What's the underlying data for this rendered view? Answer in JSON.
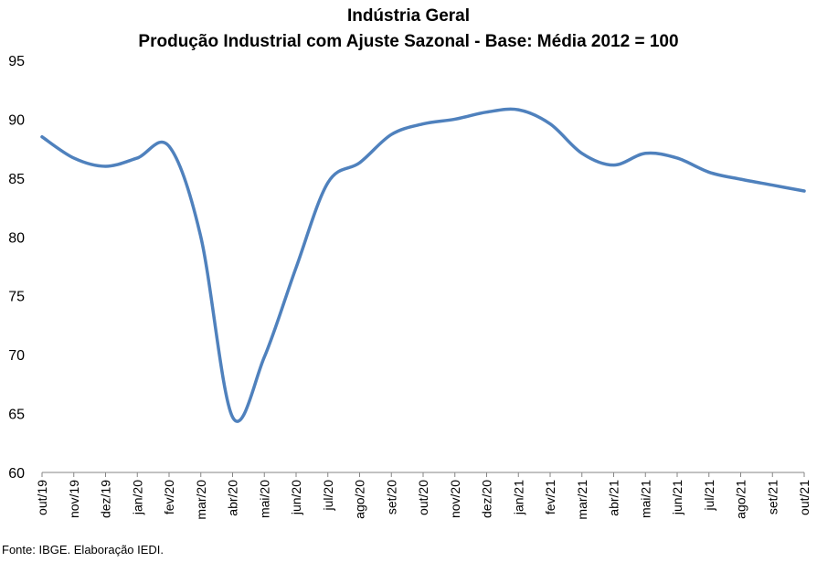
{
  "header": {
    "title": "Indústria Geral",
    "subtitle": "Produção Industrial com Ajuste Sazonal - Base: Média 2012 = 100"
  },
  "footer": {
    "source": "Fonte: IBGE. Elaboração IEDI."
  },
  "chart_data": {
    "type": "line",
    "title": "Indústria Geral",
    "subtitle": "Produção Industrial com Ajuste Sazonal - Base: Média 2012 = 100",
    "xlabel": "",
    "ylabel": "",
    "categories": [
      "out/19",
      "nov/19",
      "dez/19",
      "jan/20",
      "fev/20",
      "mar/20",
      "abr/20",
      "mai/20",
      "jun/20",
      "jul/20",
      "ago/20",
      "set/20",
      "out/20",
      "nov/20",
      "dez/20",
      "jan/21",
      "fev/21",
      "mar/21",
      "abr/21",
      "mai/21",
      "jun/21",
      "jul/21",
      "ago/21",
      "set/21",
      "out/21"
    ],
    "series": [
      {
        "values": [
          88.5,
          86.7,
          86.0,
          86.7,
          87.7,
          80.0,
          64.7,
          69.8,
          77.4,
          84.6,
          86.3,
          88.7,
          89.6,
          90.0,
          90.6,
          90.8,
          89.6,
          87.1,
          86.1,
          87.1,
          86.7,
          85.5,
          84.9,
          84.4,
          83.9
        ]
      }
    ],
    "ylim": [
      60,
      95
    ],
    "yticks": [
      60,
      65,
      70,
      75,
      80,
      85,
      90,
      95
    ],
    "grid": false,
    "legend": "none",
    "colors": {
      "line": "#4f81bd"
    }
  }
}
